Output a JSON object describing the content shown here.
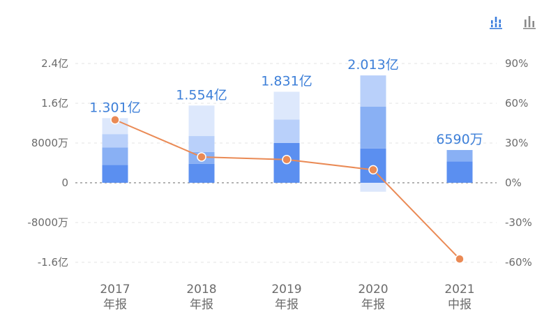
{
  "toolbar": {
    "icons": [
      "stacked-bar-chart-icon",
      "bar-chart-icon"
    ],
    "active_color": "#3b7ddd",
    "inactive_color": "#8a8a8a"
  },
  "chart_data": {
    "type": "bar",
    "title": "",
    "xlabel": "",
    "ylabel": "",
    "categories": [
      {
        "year": "2017",
        "period": "年报"
      },
      {
        "year": "2018",
        "period": "年报"
      },
      {
        "year": "2019",
        "period": "年报"
      },
      {
        "year": "2020",
        "period": "年报"
      },
      {
        "year": "2021",
        "period": "中报"
      }
    ],
    "y_left": {
      "ylim": [
        -200000000,
        260000000
      ],
      "unit": "yuan",
      "ticks": [
        {
          "value": 240000000,
          "label": "2.4亿"
        },
        {
          "value": 160000000,
          "label": "1.6亿"
        },
        {
          "value": 80000000,
          "label": "8000万"
        },
        {
          "value": 0,
          "label": "0"
        },
        {
          "value": -80000000,
          "label": "-8000万"
        },
        {
          "value": -160000000,
          "label": "-1.6亿"
        }
      ]
    },
    "y_right": {
      "ylim": [
        -75,
        97.5
      ],
      "unit": "%",
      "ticks": [
        {
          "value": 90,
          "label": "90%"
        },
        {
          "value": 60,
          "label": "60%"
        },
        {
          "value": 30,
          "label": "30%"
        },
        {
          "value": 0,
          "label": "0%"
        },
        {
          "value": -30,
          "label": "-30%"
        },
        {
          "value": -60,
          "label": "-60%"
        }
      ]
    },
    "stacked_bars": [
      {
        "total_label": "1.301亿",
        "segments": [
          {
            "from": 0,
            "to": 36000000,
            "color": "#5b8ff0"
          },
          {
            "from": 36000000,
            "to": 71000000,
            "color": "#89b0f4"
          },
          {
            "from": 71000000,
            "to": 98000000,
            "color": "#b9d0fa"
          },
          {
            "from": 98000000,
            "to": 130100000,
            "color": "#dde8fc"
          }
        ]
      },
      {
        "total_label": "1.554亿",
        "segments": [
          {
            "from": 0,
            "to": 38000000,
            "color": "#5b8ff0"
          },
          {
            "from": 38000000,
            "to": 62000000,
            "color": "#89b0f4"
          },
          {
            "from": 62000000,
            "to": 94000000,
            "color": "#b9d0fa"
          },
          {
            "from": 94000000,
            "to": 155400000,
            "color": "#dde8fc"
          }
        ]
      },
      {
        "total_label": "1.831亿",
        "segments": [
          {
            "from": 0,
            "to": 80000000,
            "color": "#5b8ff0"
          },
          {
            "from": 80000000,
            "to": 127000000,
            "color": "#b9d0fa"
          },
          {
            "from": 127000000,
            "to": 183100000,
            "color": "#dde8fc"
          }
        ]
      },
      {
        "total_label": "2.013亿",
        "segments": [
          {
            "from": 0,
            "to": 69000000,
            "color": "#5b8ff0"
          },
          {
            "from": 69000000,
            "to": 153000000,
            "color": "#89b0f4"
          },
          {
            "from": 153000000,
            "to": 216000000,
            "color": "#b9d0fa"
          },
          {
            "from": 0,
            "to": -18000000,
            "color": "#dde8fc"
          }
        ]
      },
      {
        "total_label": "6590万",
        "segments": [
          {
            "from": 0,
            "to": 43000000,
            "color": "#5b8ff0"
          },
          {
            "from": 43000000,
            "to": 65900000,
            "color": "#89b0f4"
          }
        ]
      }
    ],
    "line_series": {
      "axis": "right",
      "color": "#ea8a55",
      "values": [
        47.5,
        19.5,
        17.5,
        9.8,
        -57.5
      ]
    },
    "grid": true
  }
}
